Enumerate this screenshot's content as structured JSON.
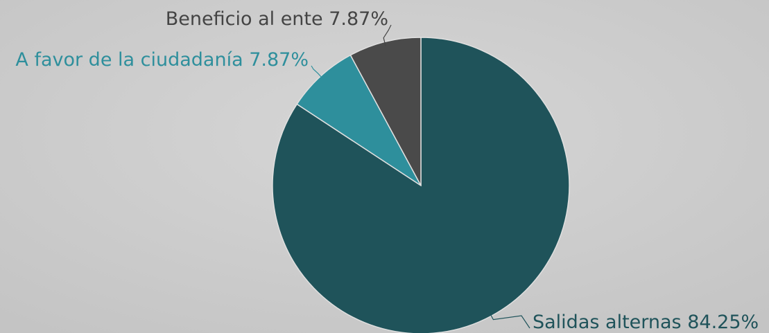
{
  "chart_data": {
    "type": "pie",
    "categories": [
      "Salidas alternas",
      "A favor de la ciudadanía",
      "Beneficio al ente"
    ],
    "values": [
      84.25,
      7.87,
      7.87
    ],
    "value_labels": [
      "84.25%",
      "7.87%",
      "7.87%"
    ],
    "colors": [
      "#1f535a",
      "#2e8f9c",
      "#4a4a4a"
    ]
  }
}
